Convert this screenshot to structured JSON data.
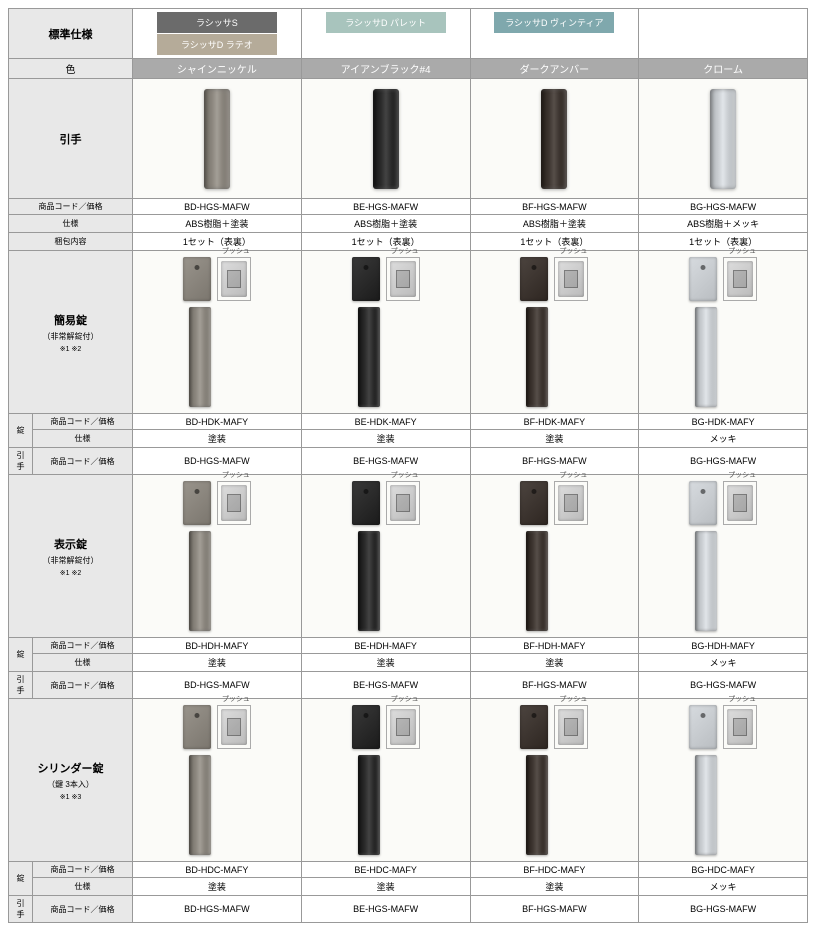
{
  "header": {
    "spec": "標準仕様",
    "color": "色"
  },
  "series": [
    {
      "label": "ラシッサS",
      "bg": "#6b6b6b"
    },
    {
      "label": "ラシッサD ラテオ",
      "bg": "#b5ab99"
    },
    {
      "label": "ラシッサD パレット",
      "bg": "#a8c4bd"
    },
    {
      "label": "ラシッサD ヴィンティア",
      "bg": "#7fa8ad"
    }
  ],
  "finishes": [
    {
      "label": "シャインニッケル",
      "swatch": "#8a857d"
    },
    {
      "label": "アイアンブラック#4",
      "swatch": "#2a2a2a"
    },
    {
      "label": "ダークアンバー",
      "swatch": "#3d3530"
    },
    {
      "label": "クローム",
      "swatch": "#c8ccd0"
    }
  ],
  "pushLabel": "プッシュ",
  "sections": [
    {
      "title": "引手",
      "sub": "",
      "notes": "",
      "kind": "single",
      "subrows": [
        {
          "label": "商品コード／価格",
          "values": [
            "BD-HGS-MAFW",
            "BE-HGS-MAFW",
            "BF-HGS-MAFW",
            "BG-HGS-MAFW"
          ]
        },
        {
          "label": "仕様",
          "values": [
            "ABS樹脂＋塗装",
            "ABS樹脂＋塗装",
            "ABS樹脂＋塗装",
            "ABS樹脂＋メッキ"
          ]
        },
        {
          "label": "梱包内容",
          "values": [
            "1セット（表裏）",
            "1セット（表裏）",
            "1セット（表裏）",
            "1セット（表裏）"
          ]
        }
      ]
    },
    {
      "title": "簡易錠",
      "sub": "（非常解錠付）",
      "notes": "※1 ※2",
      "kind": "multi",
      "groups": [
        {
          "side": "錠",
          "rows": [
            {
              "label": "商品コード／価格",
              "values": [
                "BD-HDK-MAFY",
                "BE-HDK-MAFY",
                "BF-HDK-MAFY",
                "BG-HDK-MAFY"
              ]
            },
            {
              "label": "仕様",
              "values": [
                "塗装",
                "塗装",
                "塗装",
                "メッキ"
              ]
            }
          ]
        },
        {
          "side": "引手",
          "rows": [
            {
              "label": "商品コード／価格",
              "values": [
                "BD-HGS-MAFW",
                "BE-HGS-MAFW",
                "BF-HGS-MAFW",
                "BG-HGS-MAFW"
              ]
            }
          ]
        }
      ]
    },
    {
      "title": "表示錠",
      "sub": "（非常解錠付）",
      "notes": "※1 ※2",
      "kind": "multi",
      "groups": [
        {
          "side": "錠",
          "rows": [
            {
              "label": "商品コード／価格",
              "values": [
                "BD-HDH-MAFY",
                "BE-HDH-MAFY",
                "BF-HDH-MAFY",
                "BG-HDH-MAFY"
              ]
            },
            {
              "label": "仕様",
              "values": [
                "塗装",
                "塗装",
                "塗装",
                "メッキ"
              ]
            }
          ]
        },
        {
          "side": "引手",
          "rows": [
            {
              "label": "商品コード／価格",
              "values": [
                "BD-HGS-MAFW",
                "BE-HGS-MAFW",
                "BF-HGS-MAFW",
                "BG-HGS-MAFW"
              ]
            }
          ]
        }
      ]
    },
    {
      "title": "シリンダー錠",
      "sub": "（鍵 3本入）",
      "notes": "※1 ※3",
      "kind": "multi",
      "groups": [
        {
          "side": "錠",
          "rows": [
            {
              "label": "商品コード／価格",
              "values": [
                "BD-HDC-MAFY",
                "BE-HDC-MAFY",
                "BF-HDC-MAFY",
                "BG-HDC-MAFY"
              ]
            },
            {
              "label": "仕様",
              "values": [
                "塗装",
                "塗装",
                "塗装",
                "メッキ"
              ]
            }
          ]
        },
        {
          "side": "引手",
          "rows": [
            {
              "label": "商品コード／価格",
              "values": [
                "BD-HGS-MAFW",
                "BE-HGS-MAFW",
                "BF-HGS-MAFW",
                "BG-HGS-MAFW"
              ]
            }
          ]
        }
      ]
    }
  ]
}
